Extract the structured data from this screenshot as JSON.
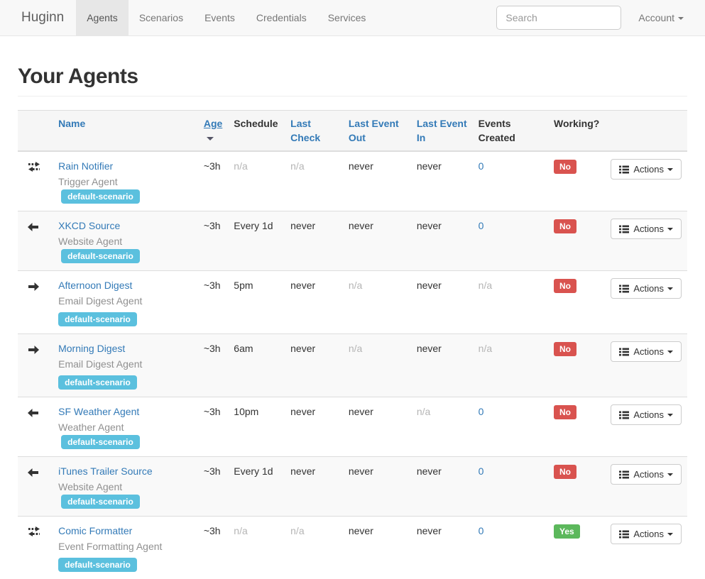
{
  "navbar": {
    "brand": "Huginn",
    "items": [
      {
        "label": "Agents",
        "active": true
      },
      {
        "label": "Scenarios",
        "active": false
      },
      {
        "label": "Events",
        "active": false
      },
      {
        "label": "Credentials",
        "active": false
      },
      {
        "label": "Services",
        "active": false
      }
    ],
    "search_placeholder": "Search",
    "account_label": "Account"
  },
  "page": {
    "title": "Your Agents"
  },
  "table": {
    "headers": [
      {
        "label": "Name",
        "sortable": true,
        "sorted": false
      },
      {
        "label": "Age",
        "sortable": true,
        "sorted": true
      },
      {
        "label": "Schedule",
        "sortable": false,
        "sorted": false
      },
      {
        "label": "Last Check",
        "sortable": true,
        "sorted": false
      },
      {
        "label": "Last Event Out",
        "sortable": true,
        "sorted": false
      },
      {
        "label": "Last Event In",
        "sortable": true,
        "sorted": false
      },
      {
        "label": "Events Created",
        "sortable": false,
        "sorted": false
      },
      {
        "label": "Working?",
        "sortable": false,
        "sorted": false
      }
    ],
    "actions_label": "Actions",
    "rows": [
      {
        "icon": "exchange-arrows-icon",
        "name": "Rain Notifier",
        "type": "Trigger Agent",
        "scenario": "default-scenario",
        "scenario_on_new_line": false,
        "age": {
          "text": "~3h",
          "muted": false
        },
        "schedule": {
          "text": "n/a",
          "muted": true
        },
        "last_check": {
          "text": "n/a",
          "muted": true
        },
        "last_event_out": {
          "text": "never",
          "muted": false
        },
        "last_event_in": {
          "text": "never",
          "muted": false
        },
        "events_created": {
          "text": "0",
          "link": true,
          "muted": false
        },
        "working": {
          "text": "No",
          "state": "danger"
        }
      },
      {
        "icon": "arrow-left-icon",
        "name": "XKCD Source",
        "type": "Website Agent",
        "scenario": "default-scenario",
        "scenario_on_new_line": false,
        "age": {
          "text": "~3h",
          "muted": false
        },
        "schedule": {
          "text": "Every 1d",
          "muted": false
        },
        "last_check": {
          "text": "never",
          "muted": false
        },
        "last_event_out": {
          "text": "never",
          "muted": false
        },
        "last_event_in": {
          "text": "never",
          "muted": false
        },
        "events_created": {
          "text": "0",
          "link": true,
          "muted": false
        },
        "working": {
          "text": "No",
          "state": "danger"
        }
      },
      {
        "icon": "arrow-right-icon",
        "name": "Afternoon Digest",
        "type": "Email Digest Agent",
        "scenario": "default-scenario",
        "scenario_on_new_line": true,
        "age": {
          "text": "~3h",
          "muted": false
        },
        "schedule": {
          "text": "5pm",
          "muted": false
        },
        "last_check": {
          "text": "never",
          "muted": false
        },
        "last_event_out": {
          "text": "n/a",
          "muted": true
        },
        "last_event_in": {
          "text": "never",
          "muted": false
        },
        "events_created": {
          "text": "n/a",
          "link": false,
          "muted": true
        },
        "working": {
          "text": "No",
          "state": "danger"
        }
      },
      {
        "icon": "arrow-right-icon",
        "name": "Morning Digest",
        "type": "Email Digest Agent",
        "scenario": "default-scenario",
        "scenario_on_new_line": true,
        "age": {
          "text": "~3h",
          "muted": false
        },
        "schedule": {
          "text": "6am",
          "muted": false
        },
        "last_check": {
          "text": "never",
          "muted": false
        },
        "last_event_out": {
          "text": "n/a",
          "muted": true
        },
        "last_event_in": {
          "text": "never",
          "muted": false
        },
        "events_created": {
          "text": "n/a",
          "link": false,
          "muted": true
        },
        "working": {
          "text": "No",
          "state": "danger"
        }
      },
      {
        "icon": "arrow-left-icon",
        "name": "SF Weather Agent",
        "type": "Weather Agent",
        "scenario": "default-scenario",
        "scenario_on_new_line": false,
        "age": {
          "text": "~3h",
          "muted": false
        },
        "schedule": {
          "text": "10pm",
          "muted": false
        },
        "last_check": {
          "text": "never",
          "muted": false
        },
        "last_event_out": {
          "text": "never",
          "muted": false
        },
        "last_event_in": {
          "text": "n/a",
          "muted": true
        },
        "events_created": {
          "text": "0",
          "link": true,
          "muted": false
        },
        "working": {
          "text": "No",
          "state": "danger"
        }
      },
      {
        "icon": "arrow-left-icon",
        "name": "iTunes Trailer Source",
        "type": "Website Agent",
        "scenario": "default-scenario",
        "scenario_on_new_line": false,
        "age": {
          "text": "~3h",
          "muted": false
        },
        "schedule": {
          "text": "Every 1d",
          "muted": false
        },
        "last_check": {
          "text": "never",
          "muted": false
        },
        "last_event_out": {
          "text": "never",
          "muted": false
        },
        "last_event_in": {
          "text": "never",
          "muted": false
        },
        "events_created": {
          "text": "0",
          "link": true,
          "muted": false
        },
        "working": {
          "text": "No",
          "state": "danger"
        }
      },
      {
        "icon": "exchange-arrows-icon",
        "name": "Comic Formatter",
        "type": "Event Formatting Agent",
        "scenario": "default-scenario",
        "scenario_on_new_line": true,
        "age": {
          "text": "~3h",
          "muted": false
        },
        "schedule": {
          "text": "n/a",
          "muted": true
        },
        "last_check": {
          "text": "n/a",
          "muted": true
        },
        "last_event_out": {
          "text": "never",
          "muted": false
        },
        "last_event_in": {
          "text": "never",
          "muted": false
        },
        "events_created": {
          "text": "0",
          "link": true,
          "muted": false
        },
        "working": {
          "text": "Yes",
          "state": "success"
        }
      }
    ]
  },
  "colors": {
    "link_blue": "#337ab7",
    "scenario_badge": "#5bc0de",
    "working_no": "#d9534f",
    "working_yes": "#5cb85c",
    "navbar_bg": "#f8f8f8",
    "active_tab_bg": "#e7e7e7"
  }
}
